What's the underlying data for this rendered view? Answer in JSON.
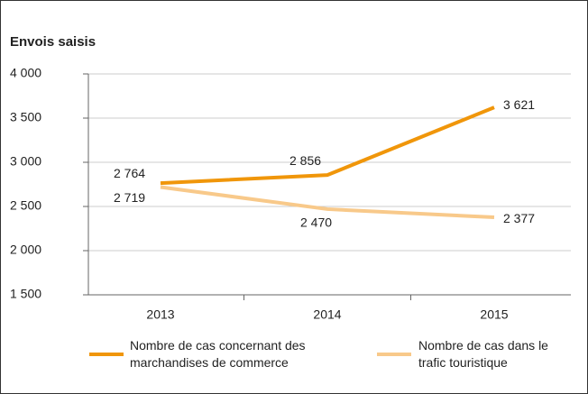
{
  "chart_data": {
    "type": "line",
    "title": "Envois saisis",
    "categories": [
      "2013",
      "2014",
      "2015"
    ],
    "series": [
      {
        "name": "Nombre de cas concernant des marchandises de commerce",
        "color": "#f0960a",
        "values": [
          2764,
          2856,
          3621
        ],
        "value_labels": [
          "2 764",
          "2 856",
          "3 621"
        ]
      },
      {
        "name": "Nombre de cas dans le trafic touristique",
        "color": "#f8c98a",
        "values": [
          2719,
          2470,
          2377
        ],
        "value_labels": [
          "2 719",
          "2 470",
          "2 377"
        ]
      }
    ],
    "ylim": [
      1500,
      4000
    ],
    "yticks": [
      {
        "value": 1500,
        "label": "1 500"
      },
      {
        "value": 2000,
        "label": "2 000"
      },
      {
        "value": 2500,
        "label": "2 500"
      },
      {
        "value": 3000,
        "label": "3 000"
      },
      {
        "value": 3500,
        "label": "3 500"
      },
      {
        "value": 4000,
        "label": "4 000"
      }
    ],
    "grid": true
  }
}
